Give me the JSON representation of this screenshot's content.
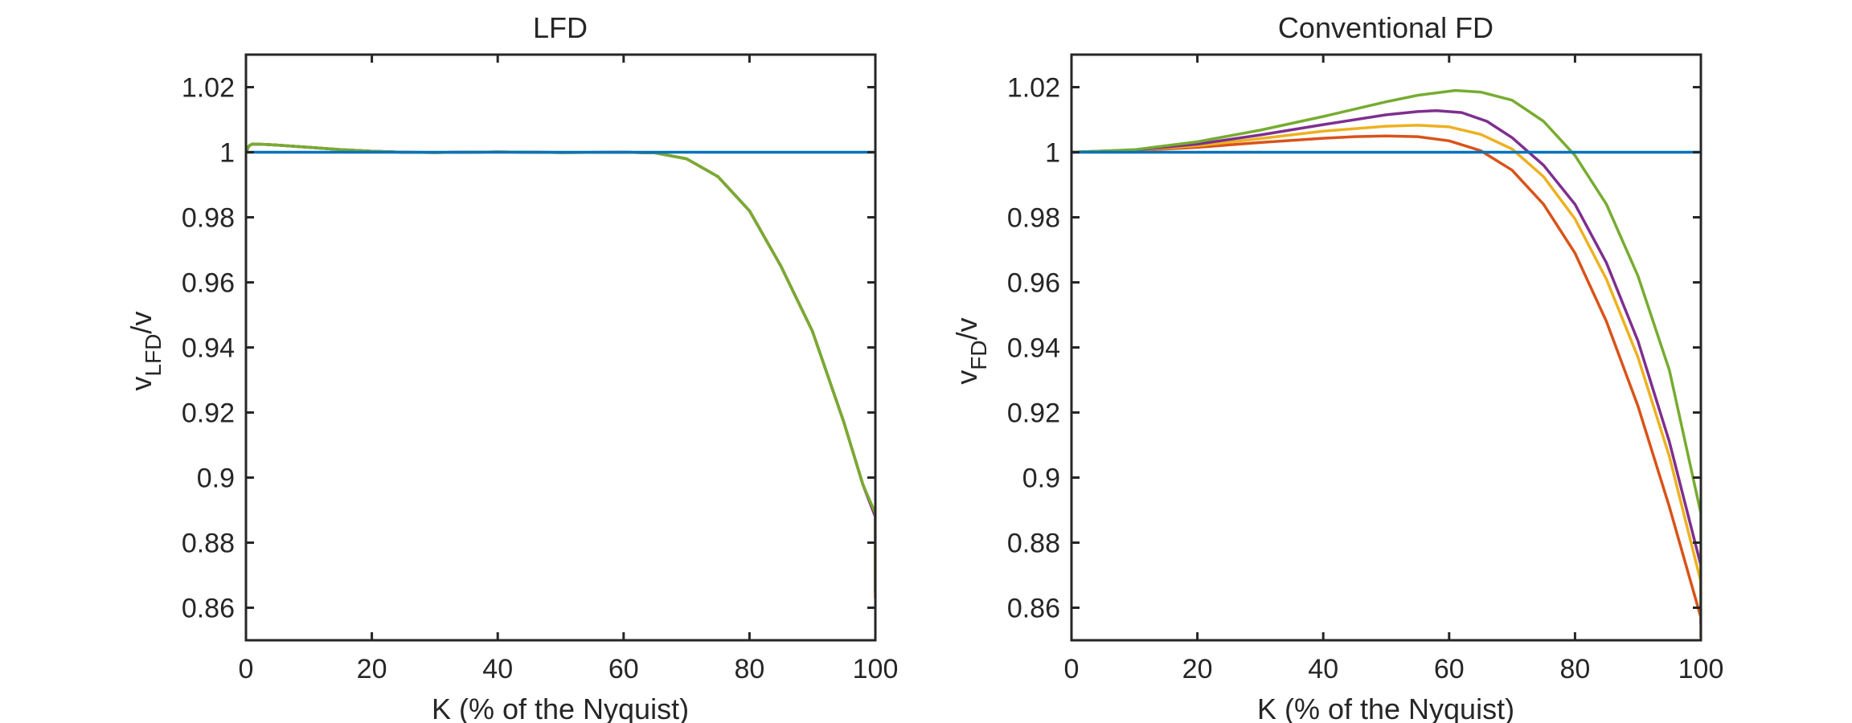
{
  "chart_data": [
    {
      "type": "line",
      "title": "LFD",
      "xlabel": "K (% of the Nyquist)",
      "ylabel_main": "v",
      "ylabel_sub": "LFD",
      "ylabel_tail": "/v",
      "xlim": [
        0,
        100
      ],
      "ylim": [
        0.85,
        1.03
      ],
      "xticks": [
        "0",
        "20",
        "40",
        "60",
        "80",
        "100"
      ],
      "yticks": [
        "0.86",
        "0.88",
        "0.9",
        "0.92",
        "0.94",
        "0.96",
        "0.98",
        "1",
        "1.02"
      ],
      "series": [
        {
          "color": "#0072BD",
          "x": [
            0,
            100
          ],
          "y": [
            1.0,
            1.0
          ]
        },
        {
          "color": "#D95319",
          "x": [
            0,
            0.5,
            1,
            3,
            5,
            10,
            15,
            20,
            25,
            30,
            40,
            50,
            60,
            65,
            70,
            75,
            80,
            85,
            90,
            95,
            98,
            100,
            100
          ],
          "y": [
            1.0,
            1.002,
            1.0025,
            1.0024,
            1.0022,
            1.0015,
            1.0008,
            1.0003,
            1.0,
            0.9999,
            1.0001,
            0.9999,
            1.0,
            0.9998,
            0.998,
            0.9925,
            0.982,
            0.965,
            0.945,
            0.917,
            0.898,
            0.888,
            0.863
          ]
        },
        {
          "color": "#EDB120",
          "x": [
            0,
            0.5,
            1,
            3,
            5,
            10,
            15,
            20,
            25,
            30,
            40,
            50,
            60,
            65,
            70,
            75,
            80,
            85,
            90,
            95,
            98,
            100,
            100
          ],
          "y": [
            1.0,
            1.002,
            1.0025,
            1.0024,
            1.0022,
            1.0015,
            1.0008,
            1.0003,
            1.0,
            0.9999,
            1.0001,
            0.9999,
            1.0,
            0.9998,
            0.998,
            0.9925,
            0.982,
            0.965,
            0.945,
            0.917,
            0.898,
            0.888,
            0.864
          ]
        },
        {
          "color": "#7E2F8E",
          "x": [
            0,
            0.5,
            1,
            3,
            5,
            10,
            15,
            20,
            25,
            30,
            40,
            50,
            60,
            65,
            70,
            75,
            80,
            85,
            90,
            95,
            98,
            100,
            100
          ],
          "y": [
            1.0,
            1.002,
            1.0025,
            1.0024,
            1.0022,
            1.0015,
            1.0008,
            1.0003,
            1.0,
            0.9999,
            1.0001,
            0.9999,
            1.0,
            0.9998,
            0.998,
            0.9925,
            0.982,
            0.965,
            0.945,
            0.917,
            0.898,
            0.888,
            0.865
          ]
        },
        {
          "color": "#77AC30",
          "x": [
            0,
            0.5,
            1,
            3,
            5,
            10,
            15,
            20,
            25,
            30,
            40,
            50,
            60,
            65,
            70,
            75,
            80,
            85,
            90,
            95,
            98,
            100,
            100
          ],
          "y": [
            1.0,
            1.002,
            1.0025,
            1.0024,
            1.0022,
            1.0015,
            1.0008,
            1.0003,
            1.0,
            0.9999,
            1.0001,
            0.9999,
            1.0,
            0.9998,
            0.998,
            0.9925,
            0.982,
            0.965,
            0.945,
            0.917,
            0.898,
            0.889,
            0.866
          ]
        }
      ]
    },
    {
      "type": "line",
      "title": "Conventional FD",
      "xlabel": "K (% of the Nyquist)",
      "ylabel_main": "v",
      "ylabel_sub": "FD",
      "ylabel_tail": "/v",
      "xlim": [
        0,
        100
      ],
      "ylim": [
        0.85,
        1.03
      ],
      "xticks": [
        "0",
        "20",
        "40",
        "60",
        "80",
        "100"
      ],
      "yticks": [
        "0.86",
        "0.88",
        "0.9",
        "0.92",
        "0.94",
        "0.96",
        "0.98",
        "1",
        "1.02"
      ],
      "series": [
        {
          "color": "#0072BD",
          "x": [
            0,
            100
          ],
          "y": [
            1.0,
            1.0
          ]
        },
        {
          "color": "#D95319",
          "x": [
            0,
            10,
            20,
            30,
            40,
            45,
            50,
            55,
            60,
            65,
            70,
            75,
            80,
            85,
            90,
            95,
            100,
            100
          ],
          "y": [
            1.0,
            1.0005,
            1.0015,
            1.003,
            1.0043,
            1.0048,
            1.005,
            1.0048,
            1.0035,
            1.0005,
            0.9945,
            0.984,
            0.969,
            0.948,
            0.922,
            0.891,
            0.857,
            0.851
          ]
        },
        {
          "color": "#EDB120",
          "x": [
            0,
            10,
            20,
            30,
            40,
            50,
            55,
            60,
            65,
            70,
            75,
            80,
            85,
            90,
            95,
            100,
            100
          ],
          "y": [
            1.0,
            1.0006,
            1.002,
            1.0042,
            1.0065,
            1.008,
            1.0083,
            1.0078,
            1.0055,
            1.001,
            0.9925,
            0.9795,
            0.961,
            0.937,
            0.9065,
            0.868,
            0.856
          ]
        },
        {
          "color": "#7E2F8E",
          "x": [
            0,
            10,
            20,
            30,
            40,
            50,
            55,
            58,
            62,
            66,
            70,
            75,
            80,
            85,
            90,
            95,
            100,
            100
          ],
          "y": [
            1.0,
            1.0007,
            1.0025,
            1.0053,
            1.0085,
            1.0115,
            1.0125,
            1.0128,
            1.0122,
            1.0095,
            1.0045,
            0.996,
            0.984,
            0.966,
            0.942,
            0.911,
            0.873,
            0.855
          ]
        },
        {
          "color": "#77AC30",
          "x": [
            0,
            10,
            20,
            30,
            40,
            50,
            55,
            61,
            65,
            70,
            75,
            80,
            85,
            90,
            95,
            100,
            100
          ],
          "y": [
            1.0,
            1.0008,
            1.0032,
            1.0068,
            1.011,
            1.0155,
            1.0175,
            1.019,
            1.0185,
            1.016,
            1.0095,
            0.999,
            0.984,
            0.962,
            0.933,
            0.889,
            0.857
          ]
        }
      ]
    }
  ]
}
